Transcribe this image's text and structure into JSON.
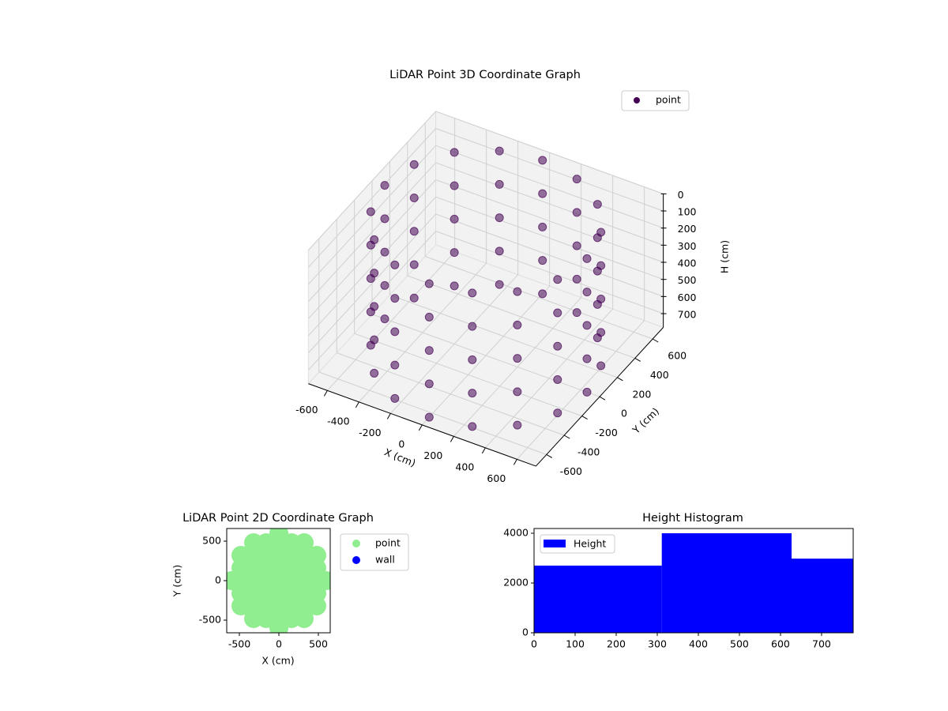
{
  "chart_data": [
    {
      "type": "scatter3d",
      "title": "LiDAR Point 3D Coordinate Graph",
      "xlabel": "X (cm)",
      "ylabel": "Y (cm)",
      "zlabel": "H (cm)",
      "xlim": [
        -720,
        720
      ],
      "ylim": [
        -720,
        720
      ],
      "zlim": [
        780,
        0
      ],
      "xticks": [
        -600,
        -400,
        -200,
        0,
        200,
        400,
        600
      ],
      "yticks": [
        -600,
        -400,
        -200,
        0,
        200,
        400,
        600
      ],
      "zticks": [
        0,
        100,
        200,
        300,
        400,
        500,
        600,
        700
      ],
      "grid": true,
      "legend": "upper right",
      "series": [
        {
          "name": "point",
          "color": "#440154",
          "x": [
            640,
            591,
            453,
            245,
            0,
            -245,
            -453,
            -591,
            -640,
            -591,
            -453,
            -245,
            0,
            245,
            453,
            591,
            640,
            591,
            453,
            245,
            0,
            -245,
            -453,
            -591,
            -640,
            -591,
            -453,
            -245,
            0,
            245,
            453,
            591,
            640,
            591,
            453,
            245,
            0,
            -245,
            -453,
            -591,
            -640,
            -591,
            -453,
            -245,
            0,
            245,
            453,
            591,
            640,
            591,
            453,
            245,
            0,
            -245,
            -453,
            -591,
            -640,
            -591,
            -453,
            -245,
            0,
            245,
            453,
            591,
            640,
            591,
            453,
            245,
            0,
            -245,
            -453,
            -591,
            -640,
            -591,
            -453,
            -245,
            0,
            245,
            453,
            591
          ],
          "y": [
            0,
            245,
            453,
            591,
            640,
            591,
            453,
            245,
            0,
            -245,
            -453,
            -591,
            -640,
            -591,
            -453,
            -245,
            0,
            245,
            453,
            591,
            640,
            591,
            453,
            245,
            0,
            -245,
            -453,
            -591,
            -640,
            -591,
            -453,
            -245,
            0,
            245,
            453,
            591,
            640,
            591,
            453,
            245,
            0,
            -245,
            -453,
            -591,
            -640,
            -591,
            -453,
            -245,
            0,
            245,
            453,
            591,
            640,
            591,
            453,
            245,
            0,
            -245,
            -453,
            -591,
            -640,
            -591,
            -453,
            -245,
            0,
            245,
            453,
            591,
            640,
            591,
            453,
            245,
            0,
            -245,
            -453,
            -591,
            -640,
            -591,
            -453,
            -245
          ],
          "z": [
            0,
            0,
            0,
            0,
            0,
            0,
            0,
            0,
            0,
            0,
            0,
            0,
            0,
            0,
            0,
            0,
            195,
            195,
            195,
            195,
            195,
            195,
            195,
            195,
            195,
            195,
            195,
            195,
            195,
            195,
            195,
            195,
            390,
            390,
            390,
            390,
            390,
            390,
            390,
            390,
            390,
            390,
            390,
            390,
            390,
            390,
            390,
            390,
            585,
            585,
            585,
            585,
            585,
            585,
            585,
            585,
            585,
            585,
            585,
            585,
            585,
            585,
            585,
            585,
            780,
            780,
            780,
            780,
            780,
            780,
            780,
            780,
            780,
            780,
            780,
            780,
            780,
            780,
            780,
            780
          ]
        }
      ]
    },
    {
      "type": "scatter",
      "title": "LiDAR Point 2D Coordinate Graph",
      "xlabel": "X (cm)",
      "ylabel": "Y (cm)",
      "xlim": [
        -660,
        650
      ],
      "ylim": [
        -660,
        660
      ],
      "xticks": [
        -500,
        0,
        500
      ],
      "yticks": [
        -500,
        0,
        500
      ],
      "legend": "outside upper right",
      "series": [
        {
          "name": "point",
          "color": "#90ee90",
          "x": [
            -480,
            -480,
            -480,
            -480,
            -480,
            -320,
            -320,
            -320,
            -320,
            -320,
            -320,
            -320,
            -160,
            -160,
            -160,
            -160,
            -160,
            -160,
            -160,
            0,
            0,
            0,
            0,
            0,
            0,
            0,
            160,
            160,
            160,
            160,
            160,
            160,
            160,
            320,
            320,
            320,
            320,
            320,
            320,
            320,
            480,
            480,
            480,
            480,
            480,
            -600,
            600,
            0,
            0
          ],
          "y": [
            -320,
            -160,
            0,
            160,
            320,
            -480,
            -320,
            -160,
            0,
            160,
            320,
            480,
            -480,
            -320,
            -160,
            0,
            160,
            320,
            480,
            -480,
            -320,
            -160,
            0,
            160,
            320,
            480,
            -480,
            -320,
            -160,
            0,
            160,
            320,
            480,
            -480,
            -320,
            -160,
            0,
            160,
            320,
            480,
            -320,
            -160,
            0,
            160,
            320,
            0,
            0,
            -600,
            600
          ]
        },
        {
          "name": "wall",
          "color": "#0000ff",
          "x": [],
          "y": []
        }
      ]
    },
    {
      "type": "histogram",
      "title": "Height Histogram",
      "xlim": [
        0,
        777
      ],
      "ylim": [
        0,
        4190
      ],
      "xticks": [
        0,
        100,
        200,
        300,
        400,
        500,
        600,
        700
      ],
      "yticks": [
        0,
        2000,
        4000
      ],
      "legend": "upper left",
      "series": [
        {
          "name": "Height",
          "color": "#0000ff",
          "bins": [
            0,
            311,
            627,
            777
          ],
          "values": [
            2700,
            4000,
            2980
          ]
        }
      ]
    }
  ]
}
